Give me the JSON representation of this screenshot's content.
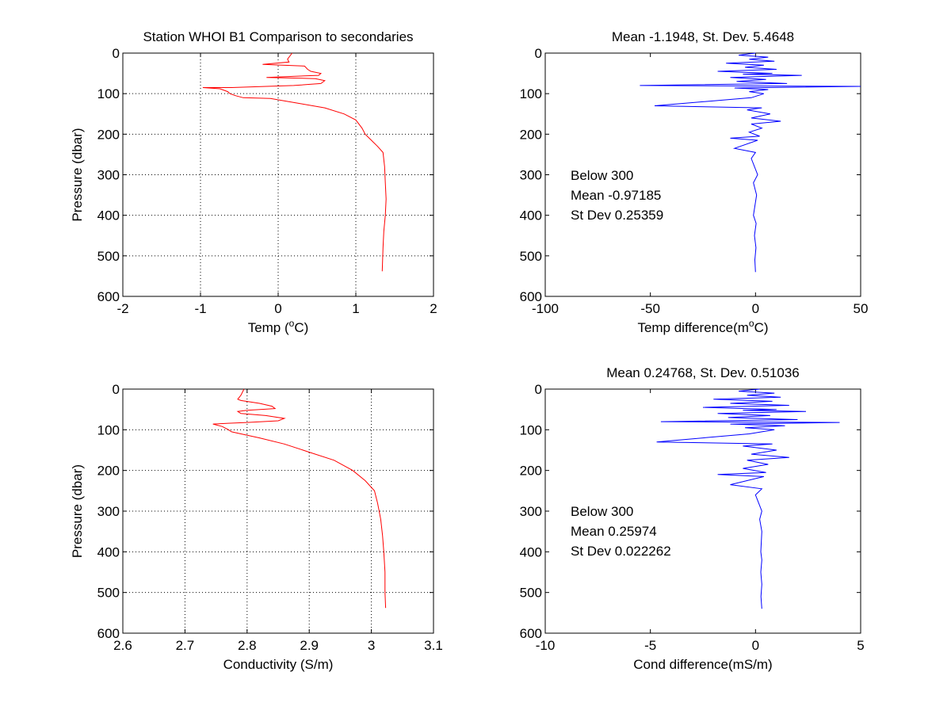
{
  "colors": {
    "red_series": "#ff0000",
    "blue_series": "#0000ff",
    "axes": "#000000",
    "grid": "#000000"
  },
  "chart_data": [
    {
      "type": "line",
      "title": "Station  WHOI B1 Comparison to secondaries",
      "xlabel": "Temp (",
      "xlabel_sup": "o",
      "xlabel_tail": "C)",
      "ylabel": "Pressure (dbar)",
      "xlim": [
        -2,
        2
      ],
      "ylim": [
        0,
        600
      ],
      "y_reversed": true,
      "grid": true,
      "xticks": [
        -2,
        -1,
        0,
        1,
        2
      ],
      "yticks": [
        0,
        100,
        200,
        300,
        400,
        500,
        600
      ],
      "series": [
        {
          "color": "#ff0000",
          "x": [
            0.18,
            0.12,
            0.14,
            -0.2,
            0.34,
            0.38,
            0.42,
            0.55,
            0.52,
            0.1,
            -0.15,
            0.48,
            0.6,
            0.55,
            0.2,
            -0.3,
            -0.6,
            -0.97,
            -0.75,
            -0.65,
            -0.62,
            -0.55,
            -0.45,
            -0.1,
            0.3,
            0.6,
            0.85,
            1.0,
            1.08,
            1.12,
            1.2,
            1.28,
            1.35,
            1.37,
            1.38,
            1.39,
            1.38,
            1.36,
            1.35,
            1.34
          ],
          "y": [
            0,
            15,
            22,
            28,
            32,
            40,
            45,
            50,
            55,
            58,
            60,
            63,
            68,
            75,
            80,
            83,
            85,
            85,
            88,
            95,
            100,
            105,
            110,
            112,
            125,
            135,
            150,
            165,
            185,
            200,
            215,
            230,
            245,
            280,
            320,
            360,
            400,
            440,
            480,
            538
          ]
        }
      ]
    },
    {
      "type": "line",
      "title": "Mean -1.1948, St. Dev. 5.4648",
      "xlabel": "Temp difference(m",
      "xlabel_sup": "o",
      "xlabel_tail": "C)",
      "ylabel": "",
      "xlim": [
        -100,
        50
      ],
      "ylim": [
        0,
        600
      ],
      "y_reversed": true,
      "grid": false,
      "xticks": [
        -100,
        -50,
        0,
        50
      ],
      "yticks": [
        0,
        100,
        200,
        300,
        400,
        500,
        600
      ],
      "annotations": [
        "Below 300",
        "Mean -0.97185",
        "St Dev 0.25359"
      ],
      "series": [
        {
          "color": "#0000ff",
          "x": [
            0,
            -8,
            6,
            -3,
            9,
            -14,
            4,
            -5,
            10,
            -18,
            8,
            -6,
            22,
            -12,
            5,
            -9,
            15,
            -55,
            50,
            -10,
            6,
            -3,
            4,
            -2,
            -48,
            3,
            -4,
            7,
            -2,
            12,
            -2,
            3,
            -3,
            2,
            -12,
            1,
            -10,
            0,
            -2,
            1,
            -1,
            0.5,
            -1,
            0.3,
            -0.5,
            0.2,
            -0.3,
            0
          ],
          "y": [
            0,
            5,
            10,
            15,
            20,
            25,
            30,
            35,
            40,
            45,
            50,
            52,
            55,
            60,
            65,
            70,
            75,
            80,
            82,
            86,
            90,
            95,
            100,
            110,
            130,
            135,
            140,
            150,
            160,
            168,
            175,
            185,
            195,
            205,
            210,
            215,
            235,
            245,
            260,
            300,
            320,
            350,
            400,
            420,
            450,
            480,
            510,
            540
          ]
        }
      ]
    },
    {
      "type": "line",
      "title": "",
      "xlabel": "Conductivity (S/m)",
      "ylabel": "Pressure (dbar)",
      "xlim": [
        2.6,
        3.1
      ],
      "ylim": [
        0,
        600
      ],
      "y_reversed": true,
      "grid": true,
      "xticks": [
        "2.6",
        "2.7",
        "2.8",
        "2.9",
        "3",
        "3.1"
      ],
      "yticks": [
        0,
        100,
        200,
        300,
        400,
        500,
        600
      ],
      "series": [
        {
          "color": "#ff0000",
          "x": [
            2.795,
            2.79,
            2.785,
            2.79,
            2.82,
            2.84,
            2.845,
            2.8,
            2.785,
            2.79,
            2.83,
            2.86,
            2.85,
            2.8,
            2.77,
            2.745,
            2.76,
            2.77,
            2.775,
            2.79,
            2.82,
            2.86,
            2.9,
            2.94,
            2.97,
            2.99,
            3.005,
            3.01,
            3.015,
            3.018,
            3.02,
            3.022,
            3.022,
            3.023
          ],
          "y": [
            0,
            15,
            25,
            28,
            35,
            42,
            48,
            52,
            55,
            60,
            65,
            72,
            78,
            82,
            84,
            86,
            92,
            100,
            105,
            110,
            120,
            135,
            155,
            175,
            200,
            225,
            250,
            280,
            320,
            360,
            400,
            450,
            500,
            538
          ]
        }
      ]
    },
    {
      "type": "line",
      "title": "Mean 0.24768, St. Dev. 0.51036",
      "xlabel": "Cond difference(mS/m)",
      "ylabel": "",
      "xlim": [
        -10,
        5
      ],
      "ylim": [
        0,
        600
      ],
      "y_reversed": true,
      "grid": false,
      "xticks": [
        -10,
        -5,
        0,
        5
      ],
      "yticks": [
        0,
        100,
        200,
        300,
        400,
        500,
        600
      ],
      "annotations": [
        "Below 300",
        "Mean 0.25974",
        "St Dev 0.022262"
      ],
      "series": [
        {
          "color": "#0000ff",
          "x": [
            0.2,
            -0.8,
            0.9,
            -0.4,
            1.2,
            -2.0,
            0.8,
            -1.2,
            1.6,
            -2.5,
            1.0,
            -0.6,
            2.4,
            -1.8,
            0.7,
            -1.3,
            2.0,
            -4.5,
            4.0,
            -1.2,
            1.4,
            -0.5,
            0.9,
            -0.3,
            -4.7,
            0.8,
            -0.6,
            1.0,
            -0.2,
            1.6,
            -0.4,
            0.6,
            -0.6,
            0.5,
            -1.8,
            0.4,
            -1.2,
            0.3,
            0.0,
            0.3,
            0.2,
            0.3,
            0.25,
            0.3,
            0.25,
            0.3,
            0.26,
            0.3
          ],
          "y": [
            0,
            5,
            10,
            15,
            20,
            25,
            30,
            35,
            40,
            45,
            50,
            52,
            55,
            60,
            65,
            70,
            75,
            80,
            82,
            86,
            90,
            95,
            100,
            110,
            130,
            135,
            140,
            150,
            160,
            168,
            175,
            185,
            195,
            205,
            210,
            215,
            235,
            245,
            260,
            300,
            320,
            350,
            400,
            420,
            450,
            480,
            510,
            540
          ]
        }
      ]
    }
  ]
}
